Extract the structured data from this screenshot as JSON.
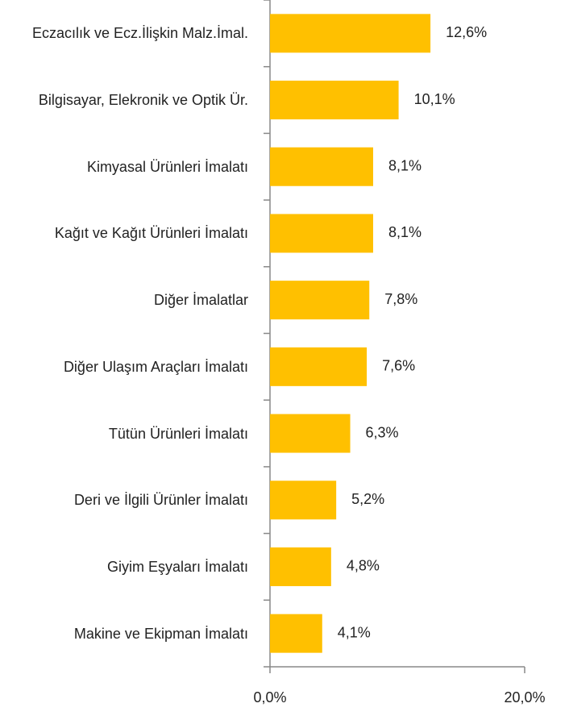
{
  "chart_data": {
    "type": "bar",
    "orientation": "horizontal",
    "categories": [
      "Eczacılık ve Ecz.İlişkin Malz.İmal.",
      "Bilgisayar, Elekronik ve Optik Ür.",
      "Kimyasal Ürünleri İmalatı",
      "Kağıt ve Kağıt Ürünleri İmalatı",
      "Diğer İmalatlar",
      "Diğer Ulaşım Araçları İmalatı",
      "Tütün Ürünleri İmalatı",
      "Deri ve İlgili Ürünler İmalatı",
      "Giyim Eşyaları İmalatı",
      "Makine ve Ekipman İmalatı"
    ],
    "values": [
      12.6,
      10.1,
      8.1,
      8.1,
      7.8,
      7.6,
      6.3,
      5.2,
      4.8,
      4.1
    ],
    "value_labels": [
      "12,6%",
      "10,1%",
      "8,1%",
      "8,1%",
      "7,8%",
      "7,6%",
      "6,3%",
      "5,2%",
      "4,8%",
      "4,1%"
    ],
    "color": "#ffc000",
    "xlim": [
      0,
      20
    ],
    "xticks": [
      {
        "value": 0,
        "label": "0,0%"
      },
      {
        "value": 20,
        "label": "20,0%"
      }
    ]
  }
}
